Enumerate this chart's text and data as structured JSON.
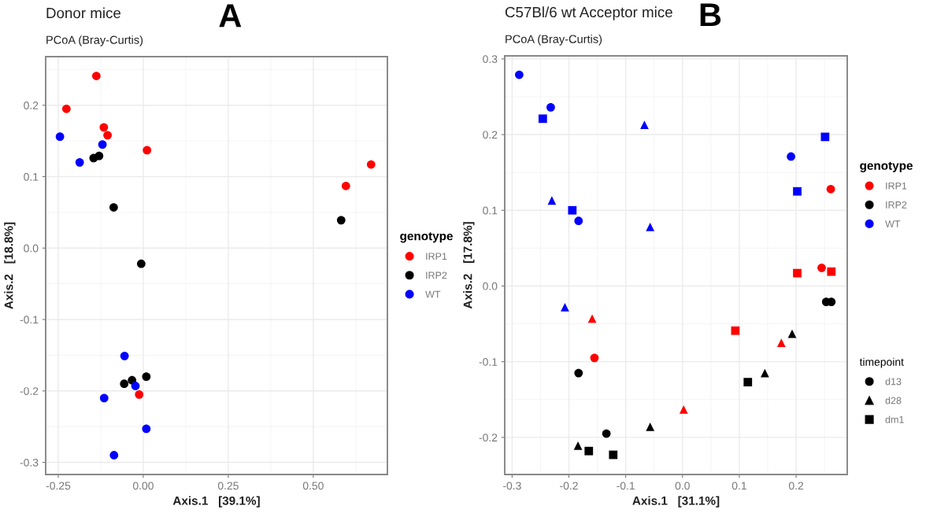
{
  "chart_data": [
    {
      "type": "scatter",
      "title": "Donor mice",
      "subtitle": "PCoA (Bray-Curtis)",
      "annotations": [
        "A"
      ],
      "xlabel": "Axis.1   [39.1%]",
      "ylabel": "Axis.2   [18.8%]",
      "legend_title": "genotype",
      "legend": "right",
      "grid": true,
      "marker": "circle",
      "xlim": [
        -0.287,
        0.718
      ],
      "xticks": [
        {
          "value": -0.25,
          "label": "-0.25"
        },
        {
          "value": 0,
          "label": "0.00"
        },
        {
          "value": 0.25,
          "label": "0.25"
        },
        {
          "value": 0.5,
          "label": "0.50"
        }
      ],
      "ylim": [
        -0.317,
        0.268
      ],
      "yticks": [
        -0.3,
        -0.2,
        -0.1,
        {
          "value": 0,
          "label": "0.0"
        },
        0.1,
        0.2
      ],
      "series": [
        {
          "name": "IRP1",
          "color": "#ff0000",
          "x": [
            -0.138,
            -0.226,
            -0.116,
            -0.105,
            0.011,
            0.596,
            0.67,
            -0.012
          ],
          "values": [
            0.241,
            0.195,
            0.169,
            0.158,
            0.137,
            0.087,
            0.117,
            -0.205
          ]
        },
        {
          "name": "IRP2",
          "color": "#000000",
          "x": [
            -0.146,
            -0.13,
            -0.087,
            0.582,
            -0.006,
            -0.056,
            -0.033,
            0.009
          ],
          "values": [
            0.126,
            0.129,
            0.057,
            0.039,
            -0.022,
            -0.19,
            -0.185,
            -0.18
          ]
        },
        {
          "name": "WT",
          "color": "#0000ff",
          "x": [
            -0.245,
            -0.12,
            -0.187,
            -0.055,
            -0.023,
            -0.115,
            0.009,
            -0.086
          ],
          "values": [
            0.156,
            0.145,
            0.12,
            -0.151,
            -0.193,
            -0.21,
            -0.253,
            -0.29
          ]
        }
      ]
    },
    {
      "type": "scatter",
      "title": "C57Bl/6 wt Acceptor mice",
      "subtitle": "PCoA (Bray-Curtis)",
      "annotations": [
        "B"
      ],
      "xlabel": "Axis.1   [31.1%]",
      "ylabel": "Axis.2   [17.8%]",
      "legend_title": [
        "genotype",
        "timepoint"
      ],
      "legend": "right",
      "grid": true,
      "xlim": [
        -0.313,
        0.29
      ],
      "xticks": [
        -0.3,
        -0.2,
        -0.1,
        {
          "value": 0,
          "label": "0.0"
        },
        0.1,
        0.2
      ],
      "ylim": [
        -0.249,
        0.304
      ],
      "yticks": [
        -0.2,
        -0.1,
        {
          "value": 0,
          "label": "0.0"
        },
        0.1,
        0.2,
        0.3
      ],
      "series": [
        {
          "name": "IRP1",
          "color": "#ff0000",
          "x": [
            0.261,
            0.202,
            0.245,
            0.262,
            -0.159,
            0.093,
            0.174,
            -0.155,
            0.002
          ],
          "values": [
            0.128,
            0.017,
            0.024,
            0.019,
            -0.043,
            -0.059,
            -0.075,
            -0.095,
            -0.163
          ],
          "marker": [
            "circle",
            "square",
            "circle",
            "square",
            "triangle",
            "square",
            "triangle",
            "circle",
            "triangle"
          ]
        },
        {
          "name": "IRP2",
          "color": "#000000",
          "x": [
            0.253,
            0.262,
            0.193,
            -0.183,
            0.145,
            0.115,
            -0.057,
            -0.134,
            -0.184,
            -0.165,
            -0.122
          ],
          "values": [
            -0.021,
            -0.021,
            -0.063,
            -0.115,
            -0.115,
            -0.127,
            -0.186,
            -0.195,
            -0.211,
            -0.218,
            -0.223
          ],
          "marker": [
            "circle",
            "circle",
            "triangle",
            "circle",
            "triangle",
            "square",
            "triangle",
            "circle",
            "triangle",
            "square",
            "square"
          ]
        },
        {
          "name": "WT",
          "color": "#0000ff",
          "x": [
            -0.2875,
            -0.232,
            -0.246,
            -0.067,
            0.251,
            0.191,
            0.202,
            -0.23,
            -0.194,
            -0.183,
            -0.057,
            -0.207
          ],
          "values": [
            0.279,
            0.236,
            0.221,
            0.213,
            0.197,
            0.171,
            0.125,
            0.113,
            0.1,
            0.086,
            0.078,
            -0.028
          ],
          "marker": [
            "circle",
            "circle",
            "square",
            "triangle",
            "square",
            "circle",
            "square",
            "triangle",
            "square",
            "circle",
            "triangle",
            "triangle"
          ]
        },
        {
          "name": "d13",
          "color": "#000000",
          "marker": "circle"
        },
        {
          "name": "d28",
          "color": "#000000",
          "marker": "triangle"
        },
        {
          "name": "dm1",
          "color": "#000000",
          "marker": "square"
        }
      ]
    }
  ]
}
